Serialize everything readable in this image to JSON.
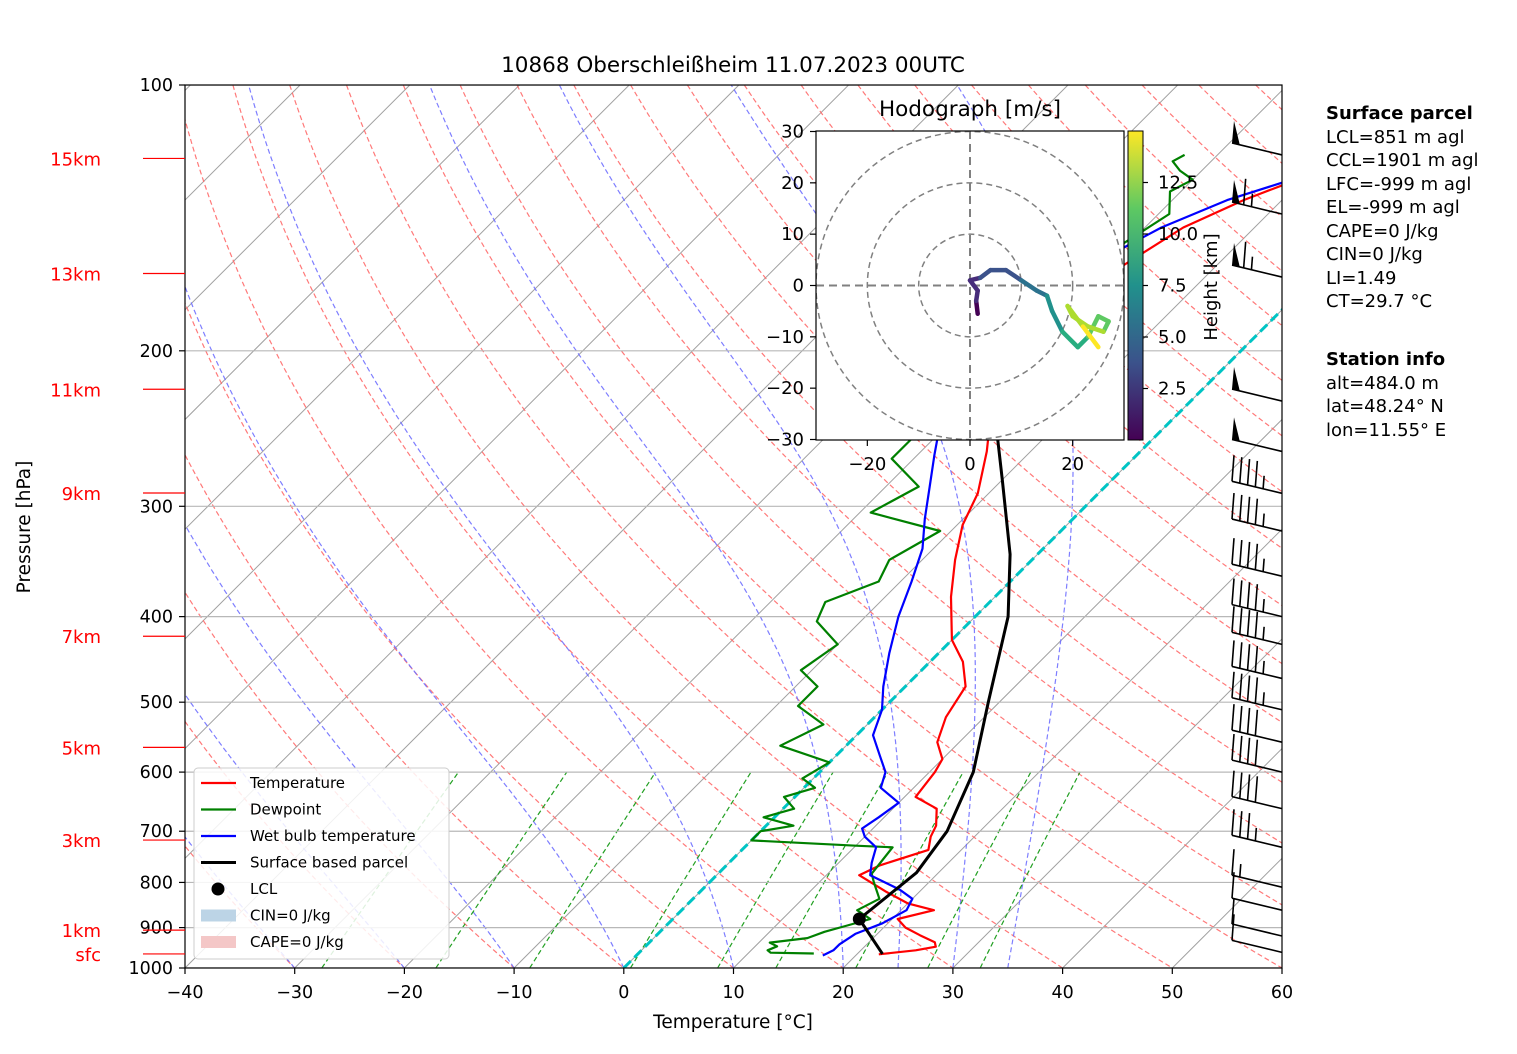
{
  "chart_data": {
    "type": "line",
    "title": "10868 Oberschleißheim 11.07.2023 00UTC",
    "xlabel": "Temperature [°C]",
    "ylabel": "Pressure [hPa]",
    "xlim": [
      -40,
      60
    ],
    "ylim": [
      1000,
      100
    ],
    "y_scale": "log",
    "x_ticks": [
      "−40",
      "−30",
      "−20",
      "−10",
      "0",
      "10",
      "20",
      "30",
      "40",
      "50",
      "60"
    ],
    "y_ticks": [
      "100",
      "200",
      "300",
      "400",
      "500",
      "600",
      "700",
      "800",
      "900",
      "1000"
    ],
    "height_labels": [
      {
        "label": "15km",
        "p": 121.1
      },
      {
        "label": "13km",
        "p": 163.5
      },
      {
        "label": "11km",
        "p": 221.1
      },
      {
        "label": "9km",
        "p": 289.8
      },
      {
        "label": "7km",
        "p": 421.0
      },
      {
        "label": "5km",
        "p": 562.5
      },
      {
        "label": "3km",
        "p": 716.3
      },
      {
        "label": "1km",
        "p": 906.0
      },
      {
        "label": "sfc",
        "p": 964.0
      }
    ],
    "series": [
      {
        "name": "Temperature",
        "color": "#ff0000",
        "points": [
          [
            22,
            965
          ],
          [
            25,
            955
          ],
          [
            26.5,
            946
          ],
          [
            26,
            935
          ],
          [
            24,
            918
          ],
          [
            22,
            900
          ],
          [
            20.5,
            880
          ],
          [
            23,
            860
          ],
          [
            20,
            845
          ],
          [
            17,
            820
          ],
          [
            13,
            785
          ],
          [
            14,
            765
          ],
          [
            17,
            735
          ],
          [
            16,
            710
          ],
          [
            15.5,
            690
          ],
          [
            14,
            660
          ],
          [
            11,
            640
          ],
          [
            10.5,
            600
          ],
          [
            10,
            580
          ],
          [
            8,
            555
          ],
          [
            6.5,
            520
          ],
          [
            5.5,
            480
          ],
          [
            3,
            450
          ],
          [
            0,
            425
          ],
          [
            -4,
            380
          ],
          [
            -7,
            345
          ],
          [
            -9.5,
            315
          ],
          [
            -11,
            290
          ],
          [
            -14,
            260
          ],
          [
            -16.5,
            240
          ],
          [
            -18.5,
            220
          ],
          [
            -20.5,
            205
          ],
          [
            -21,
            190
          ],
          [
            -20.5,
            175
          ],
          [
            -18.5,
            160
          ],
          [
            -16.5,
            145
          ],
          [
            -13.5,
            135
          ],
          [
            -10.5,
            128
          ],
          [
            -8,
            122
          ],
          [
            -6,
            117
          ]
        ]
      },
      {
        "name": "Dewpoint",
        "color": "#008000",
        "points": [
          [
            16,
            963
          ],
          [
            12,
            961
          ],
          [
            11.5,
            955
          ],
          [
            12,
            945
          ],
          [
            11,
            936
          ],
          [
            14,
            925
          ],
          [
            15,
            910
          ],
          [
            16.5,
            895
          ],
          [
            18,
            880
          ],
          [
            16,
            860
          ],
          [
            17,
            835
          ],
          [
            15,
            800
          ],
          [
            14,
            782
          ],
          [
            13.5,
            730
          ],
          [
            10,
            727
          ],
          [
            0,
            717
          ],
          [
            0,
            700
          ],
          [
            2.5,
            690
          ],
          [
            -1,
            675
          ],
          [
            1,
            660
          ],
          [
            -1,
            640
          ],
          [
            1,
            625
          ],
          [
            -1,
            610
          ],
          [
            0,
            585
          ],
          [
            -6,
            560
          ],
          [
            -4,
            530
          ],
          [
            -8,
            505
          ],
          [
            -8,
            480
          ],
          [
            -11,
            460
          ],
          [
            -10,
            430
          ],
          [
            -14,
            405
          ],
          [
            -15,
            385
          ],
          [
            -12,
            365
          ],
          [
            -13,
            345
          ],
          [
            -11,
            320
          ],
          [
            -19,
            305
          ],
          [
            -17,
            285
          ],
          [
            -22,
            265
          ],
          [
            -22,
            250
          ],
          [
            -20,
            235
          ],
          [
            -21,
            220
          ],
          [
            -21,
            205
          ],
          [
            -19,
            195
          ],
          [
            -20,
            180
          ],
          [
            -19,
            165
          ],
          [
            -21,
            155
          ],
          [
            -19,
            140
          ],
          [
            -21,
            132
          ],
          [
            -20,
            128
          ],
          [
            -22,
            125
          ],
          [
            -23.5,
            122
          ],
          [
            -23,
            120
          ]
        ]
      },
      {
        "name": "Wet bulb temperature",
        "color": "#0000ff",
        "points": [
          [
            17,
            968
          ],
          [
            17.5,
            955
          ],
          [
            17.5,
            940
          ],
          [
            18,
            915
          ],
          [
            19.5,
            890
          ],
          [
            20.5,
            860
          ],
          [
            20,
            835
          ],
          [
            18,
            815
          ],
          [
            14,
            785
          ],
          [
            13,
            760
          ],
          [
            12,
            730
          ],
          [
            10,
            710
          ],
          [
            9,
            695
          ],
          [
            9.5,
            675
          ],
          [
            10,
            650
          ],
          [
            7,
            625
          ],
          [
            6,
            600
          ],
          [
            4,
            575
          ],
          [
            1.5,
            545
          ],
          [
            0,
            510
          ],
          [
            -2,
            480
          ],
          [
            -4.5,
            440
          ],
          [
            -7,
            400
          ],
          [
            -9,
            365
          ],
          [
            -11,
            335
          ],
          [
            -13.5,
            310
          ],
          [
            -16,
            285
          ],
          [
            -18.5,
            262
          ],
          [
            -21,
            240
          ],
          [
            -23,
            222
          ],
          [
            -24.5,
            208
          ],
          [
            -24.5,
            190
          ],
          [
            -23.5,
            175
          ],
          [
            -21.5,
            160
          ],
          [
            -18.5,
            145
          ],
          [
            -15,
            135
          ],
          [
            -11,
            128
          ],
          [
            -8.5,
            122
          ],
          [
            -6,
            117
          ]
        ]
      },
      {
        "name": "Surface based parcel",
        "color": "#000000",
        "points": [
          [
            22.3,
            964
          ],
          [
            17.0,
            880
          ],
          [
            18.0,
            780
          ],
          [
            17.0,
            700
          ],
          [
            14.0,
            600
          ],
          [
            9.0,
            500
          ],
          [
            3.0,
            400
          ],
          [
            -2.5,
            340
          ],
          [
            -10.0,
            280
          ],
          [
            -16.0,
            240
          ],
          [
            -22.0,
            205
          ],
          [
            -28.0,
            175
          ],
          [
            -33.0,
            150
          ],
          [
            -38.0,
            130
          ],
          [
            -42.5,
            119
          ]
        ]
      }
    ],
    "lcl_point": {
      "label": "LCL",
      "t": 17.0,
      "p": 880
    },
    "legend": {
      "location": "lower-left",
      "entries": [
        "Temperature",
        "Dewpoint",
        "Wet bulb temperature",
        "Surface based parcel",
        "LCL",
        "CIN=0 J/kg",
        "CAPE=0 J/kg"
      ],
      "cin_color": "#bcd4e6",
      "cape_color": "#f4c7c7"
    },
    "hodograph": {
      "title": "Hodograph [m/s]",
      "xlim": [
        -30,
        30
      ],
      "ylim": [
        -30,
        30
      ],
      "x_ticks": [
        "−20",
        "0",
        "20"
      ],
      "y_ticks": [
        "30",
        "20",
        "10",
        "0",
        "−10",
        "−20",
        "−30"
      ],
      "rings": [
        10,
        20,
        30
      ],
      "colorbar_label": "Height [km]",
      "colorbar_ticks": [
        "2.5",
        "5.0",
        "7.5",
        "10.0",
        "12.5"
      ],
      "colorbar_range": [
        0,
        15
      ],
      "points": [
        [
          1.5,
          -5.5,
          0.2
        ],
        [
          1.2,
          -3,
          0.6
        ],
        [
          1.5,
          -1,
          1.0
        ],
        [
          0,
          1,
          1.5
        ],
        [
          2,
          1.5,
          2.0
        ],
        [
          4,
          3,
          3.0
        ],
        [
          7,
          3,
          3.8
        ],
        [
          10,
          1,
          4.5
        ],
        [
          13,
          -1,
          5.2
        ],
        [
          15,
          -2,
          6.0
        ],
        [
          16,
          -5,
          7.0
        ],
        [
          18,
          -9,
          8.0
        ],
        [
          21,
          -12,
          9.0
        ],
        [
          23,
          -10,
          9.8
        ],
        [
          25,
          -6,
          10.5
        ],
        [
          27,
          -7,
          11.2
        ],
        [
          26,
          -9,
          11.8
        ],
        [
          23,
          -8,
          12.4
        ],
        [
          20,
          -6,
          12.9
        ],
        [
          19,
          -4,
          13.4
        ],
        [
          22,
          -8,
          13.9
        ],
        [
          25,
          -12,
          14.4
        ]
      ]
    },
    "wind_barbs": {
      "label_free": true,
      "levels_hpa": [
        120,
        140,
        165,
        228,
        260,
        290,
        320,
        360,
        400,
        430,
        470,
        510,
        555,
        600,
        660,
        730,
        810,
        860,
        920,
        960
      ],
      "speeds_kt": [
        50,
        65,
        65,
        50,
        50,
        45,
        45,
        45,
        45,
        45,
        45,
        45,
        40,
        40,
        40,
        35,
        15,
        10,
        10,
        10
      ]
    }
  },
  "surface_parcel": {
    "header": "Surface parcel",
    "lines": [
      "LCL=851 m agl",
      "CCL=1901 m agl",
      "LFC=-999 m agl",
      "EL=-999 m agl",
      "CAPE=0 J/kg",
      "CIN=0 J/kg",
      "LI=1.49",
      "CT=29.7 °C"
    ]
  },
  "station_info": {
    "header": "Station info",
    "lines": [
      "alt=484.0 m",
      "lat=48.24° N",
      "lon=11.55° E"
    ]
  },
  "colors": {
    "isotherm": "#a0a0a0",
    "dry_adiabat": "#ff6a6a",
    "moist_adiabat": "#7070ff",
    "mixing_ratio": "#22a022",
    "zero_isotherm": "#00c4c4",
    "height_label": "#ff0000"
  }
}
